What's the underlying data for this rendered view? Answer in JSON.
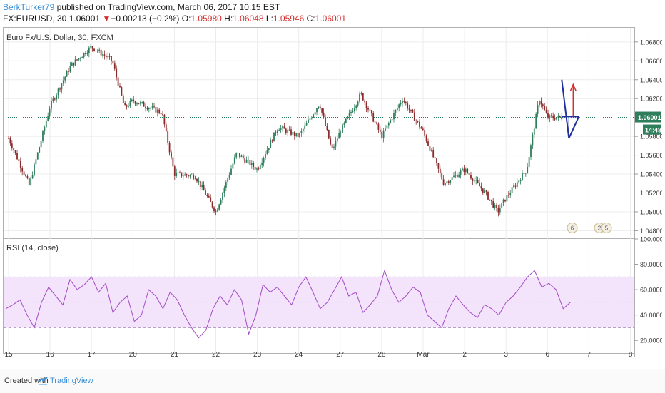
{
  "header": {
    "author": "BerkTurker79",
    "published_text": "published on TradingView.com, March 06, 2017 10:15 EST",
    "symbol": "FX:EURUSD, 30",
    "last": "1.06001",
    "change_arrow": "▼",
    "change": "−0.00213 (−0.2%)",
    "o_label": "O:",
    "o_value": "1.05980",
    "h_label": "H:",
    "h_value": "1.06048",
    "l_label": "L:",
    "l_value": "1.05946",
    "c_label": "C:",
    "c_value": "1.06001"
  },
  "colors": {
    "up": "#2e7d5b",
    "down": "#8b2a2a",
    "rsi_line": "#a24bc4",
    "rsi_band": "#f3e3fb",
    "price_tag": "#2e7d5b",
    "drawing_blue": "#1f2f9e",
    "drawing_red": "#d32f2f",
    "link": "#3a8fd8"
  },
  "chart_data": [
    {
      "type": "candlestick",
      "title": "Euro Fx/U.S. Dollar, 30, FXCM",
      "x_tick_labels": [
        "15",
        "16",
        "17",
        "20",
        "21",
        "22",
        "23",
        "24",
        "27",
        "28",
        "Mar",
        "2",
        "3",
        "6",
        "7",
        "8"
      ],
      "y_tick_labels": [
        "1.06800",
        "1.06600",
        "1.06400",
        "1.06200",
        "1.05800",
        "1.05600",
        "1.05400",
        "1.05200",
        "1.05000",
        "1.04800"
      ],
      "ylim": [
        1.0472,
        1.0695
      ],
      "last_price_label": "1.06001",
      "countdown_label": "14:48",
      "event_icons": [
        "6",
        "2",
        "5"
      ],
      "approx_path": [
        {
          "x": "15",
          "y": 1.0578
        },
        {
          "x": "15.5",
          "y": 1.0528
        },
        {
          "x": "16",
          "y": 1.0612
        },
        {
          "x": "16.5",
          "y": 1.0655
        },
        {
          "x": "17",
          "y": 1.0675
        },
        {
          "x": "17.5",
          "y": 1.066
        },
        {
          "x": "17.8",
          "y": 1.061
        },
        {
          "x": "20",
          "y": 1.0618
        },
        {
          "x": "20.7",
          "y": 1.0605
        },
        {
          "x": "21",
          "y": 1.054
        },
        {
          "x": "21.5",
          "y": 1.0538
        },
        {
          "x": "22",
          "y": 1.05
        },
        {
          "x": "22.5",
          "y": 1.0562
        },
        {
          "x": "23",
          "y": 1.0545
        },
        {
          "x": "23.5",
          "y": 1.059
        },
        {
          "x": "24",
          "y": 1.058
        },
        {
          "x": "24.5",
          "y": 1.0615
        },
        {
          "x": "24.8",
          "y": 1.0565
        },
        {
          "x": "27",
          "y": 1.0585
        },
        {
          "x": "27.5",
          "y": 1.0625
        },
        {
          "x": "28",
          "y": 1.058
        },
        {
          "x": "28.5",
          "y": 1.062
        },
        {
          "x": "Mar",
          "y": 1.0585
        },
        {
          "x": "1.5",
          "y": 1.053
        },
        {
          "x": "2",
          "y": 1.0545
        },
        {
          "x": "2.5",
          "y": 1.052
        },
        {
          "x": "2.8",
          "y": 1.05
        },
        {
          "x": "3",
          "y": 1.0515
        },
        {
          "x": "3.5",
          "y": 1.0545
        },
        {
          "x": "5.8",
          "y": 1.062
        },
        {
          "x": "6",
          "y": 1.06
        }
      ]
    },
    {
      "type": "line",
      "title": "RSI (14, close)",
      "y_tick_labels": [
        "100.0000",
        "80.0000",
        "60.0000",
        "40.0000",
        "20.0000"
      ],
      "ylim": [
        10,
        100
      ],
      "band": [
        30,
        70
      ],
      "approx_values": [
        45,
        48,
        52,
        40,
        30,
        50,
        62,
        55,
        48,
        68,
        60,
        64,
        70,
        58,
        65,
        42,
        50,
        55,
        35,
        40,
        60,
        55,
        45,
        58,
        52,
        40,
        30,
        22,
        28,
        45,
        55,
        48,
        60,
        52,
        25,
        40,
        64,
        58,
        62,
        55,
        48,
        62,
        70,
        58,
        45,
        50,
        60,
        70,
        55,
        58,
        42,
        48,
        55,
        75,
        60,
        50,
        55,
        62,
        58,
        40,
        35,
        30,
        45,
        55,
        48,
        42,
        38,
        48,
        45,
        40,
        50,
        55,
        62,
        70,
        75,
        62,
        65,
        60,
        45,
        50
      ]
    }
  ],
  "footer": {
    "created": "Created with",
    "brand": "TradingView"
  }
}
